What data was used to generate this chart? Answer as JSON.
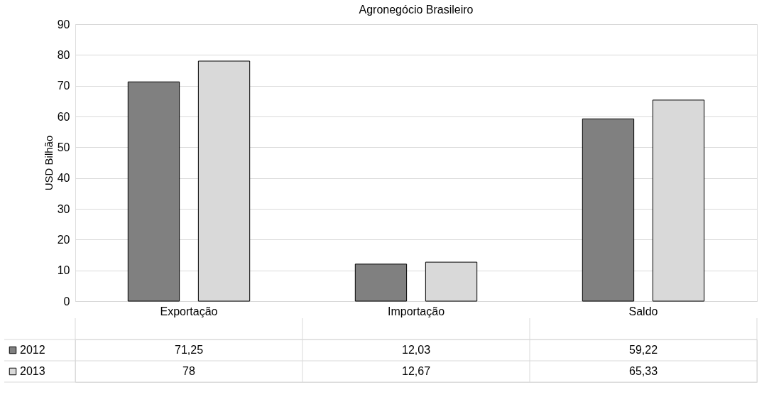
{
  "chart_data": {
    "type": "bar",
    "title": "Agronegócio Brasileiro",
    "ylabel": "USD Bilhão",
    "categories": [
      "Exportação",
      "Importação",
      "Saldo"
    ],
    "series": [
      {
        "name": "2012",
        "color": "#808080",
        "values": [
          71.25,
          12.03,
          59.22
        ],
        "value_labels": [
          "71,25",
          "12,03",
          "59,22"
        ]
      },
      {
        "name": "2013",
        "color": "#d9d9d9",
        "values": [
          78,
          12.67,
          65.33
        ],
        "value_labels": [
          "78",
          "12,67",
          "65,33"
        ]
      }
    ],
    "ylim": [
      0,
      90
    ],
    "yticks": [
      0,
      10,
      20,
      30,
      40,
      50,
      60,
      70,
      80,
      90
    ],
    "grid": "y",
    "legend": "bottom"
  }
}
